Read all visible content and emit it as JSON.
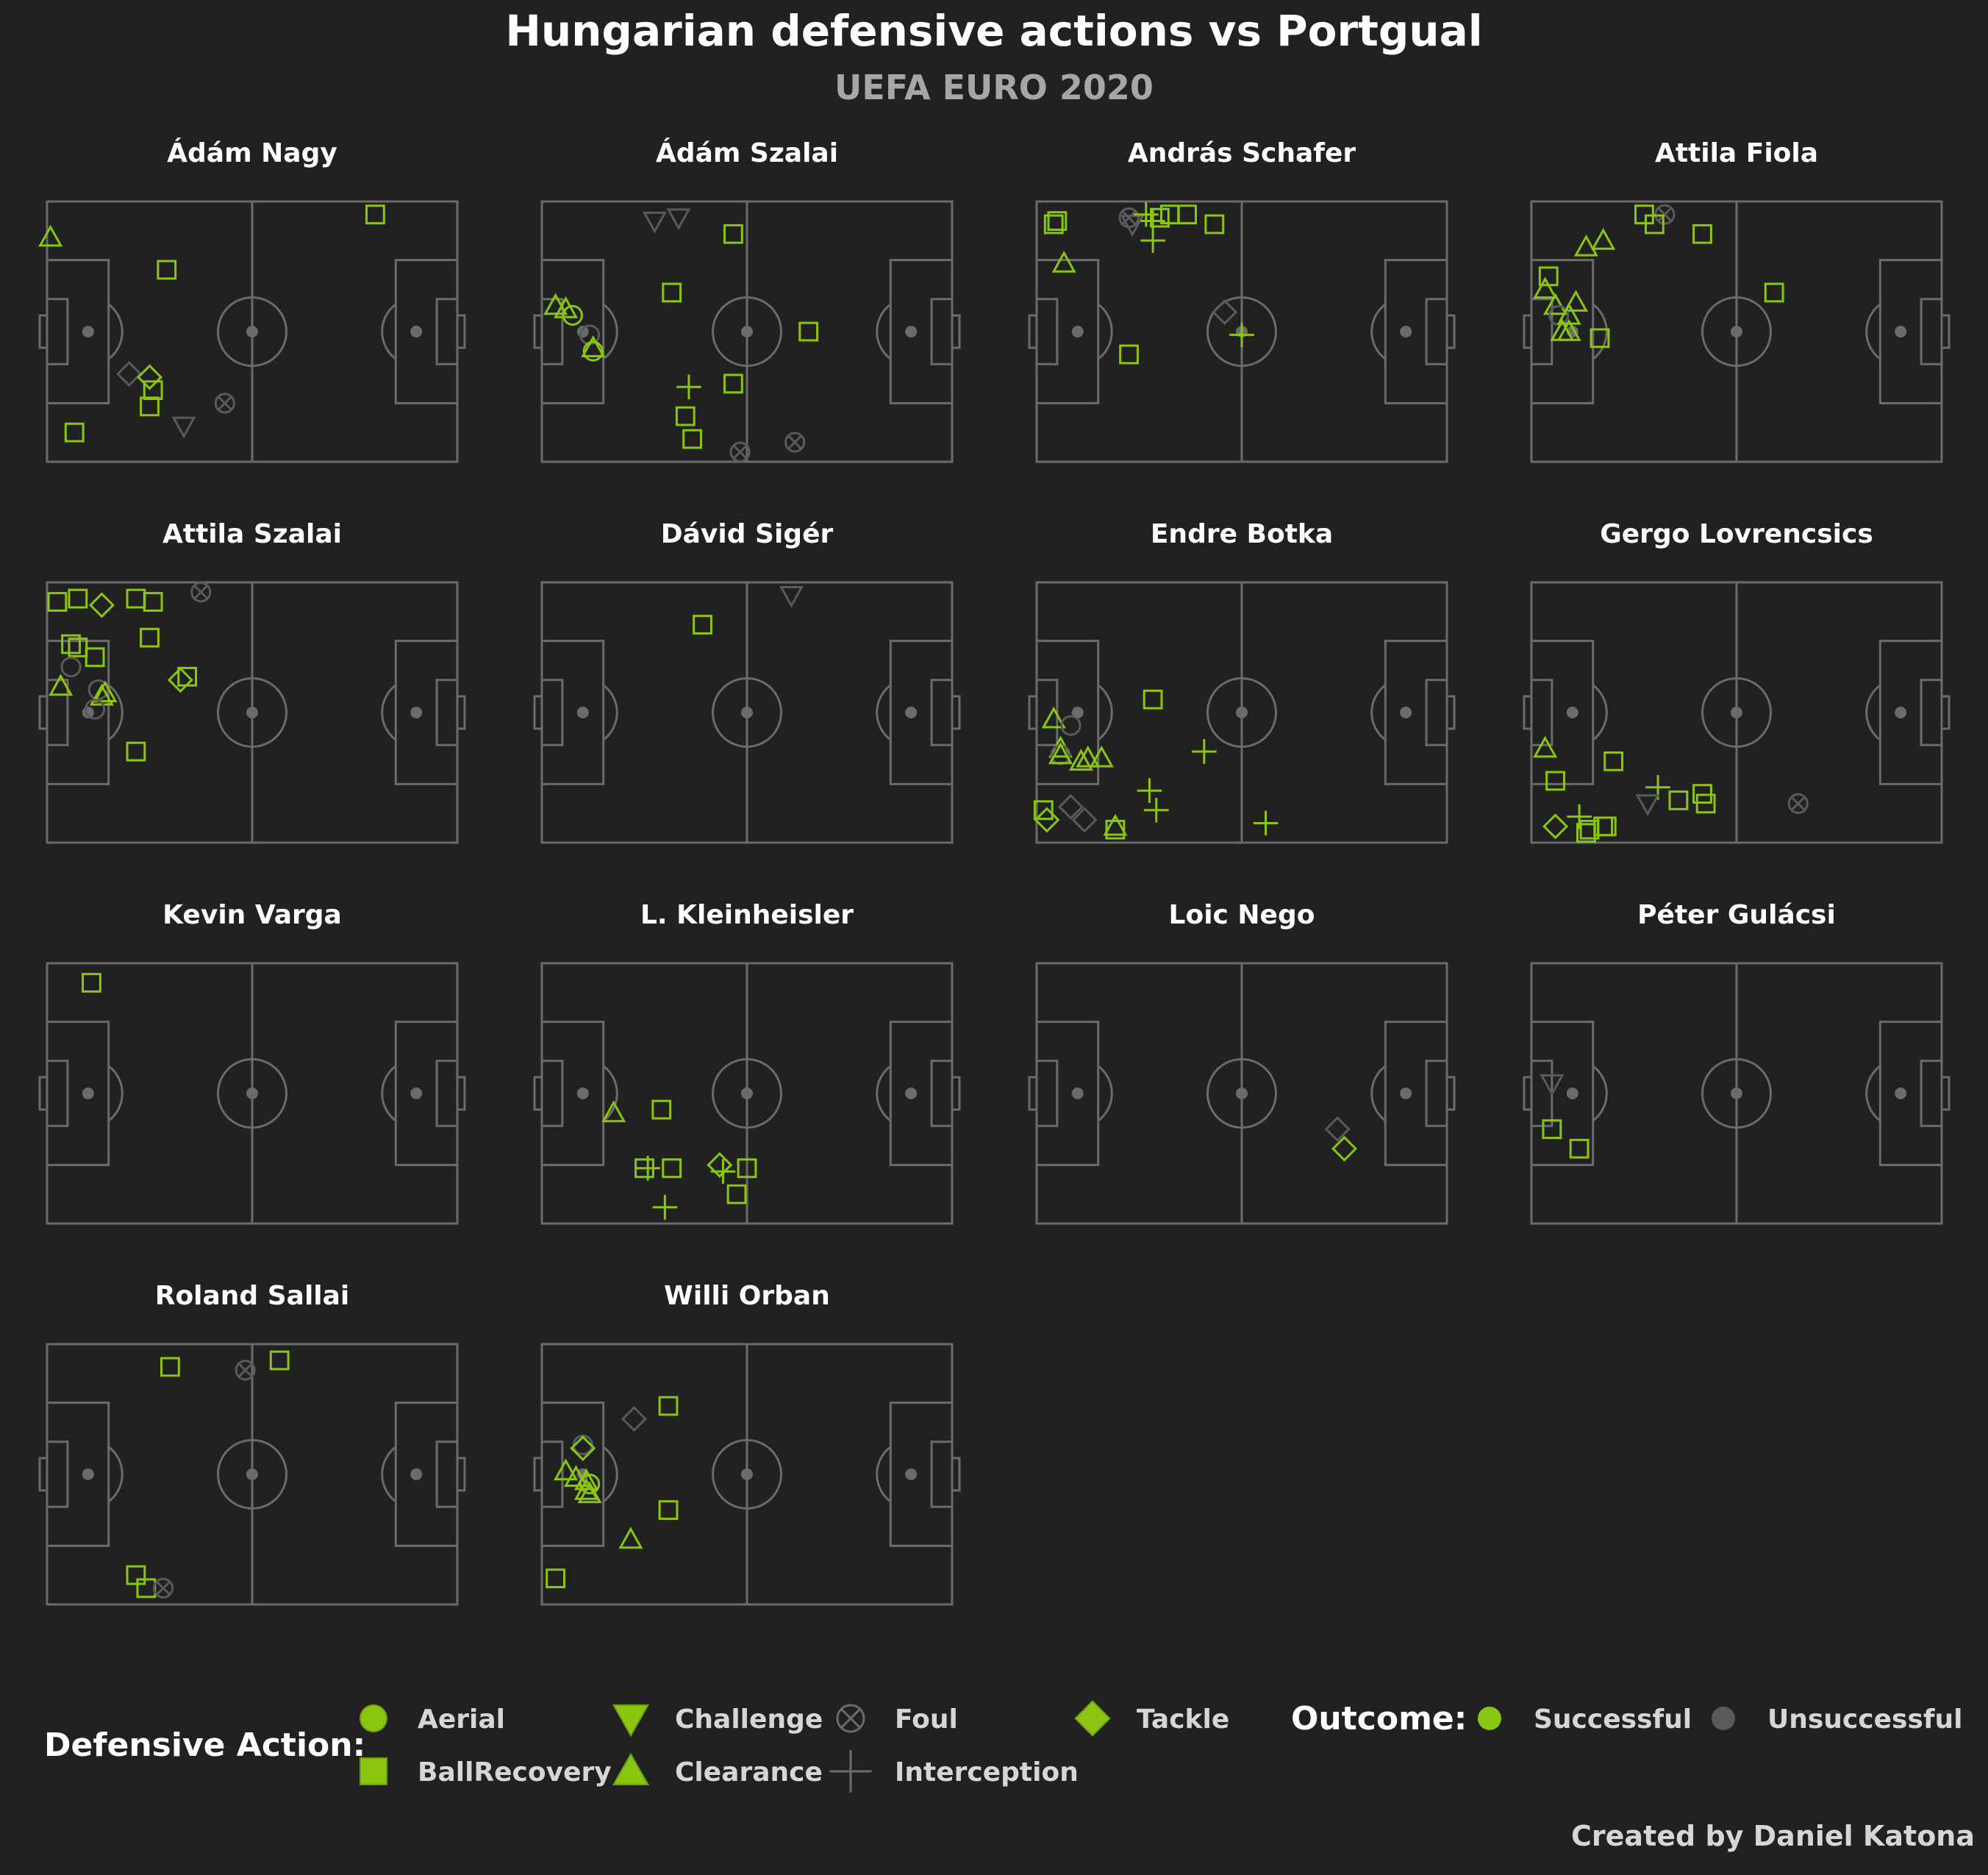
{
  "title": "Hungarian defensive actions vs Portgual",
  "subtitle": "UEFA EURO 2020",
  "credit": "Created by Daniel Katona",
  "colors": {
    "background": "#212121",
    "pitch_line": "#6b6b6b",
    "successful": "#8ac60f",
    "unsuccessful": "#5a5a5a"
  },
  "legend": {
    "actions_title": "Defensive Action:",
    "outcome_title": "Outcome:",
    "actions": [
      {
        "name": "Aerial",
        "marker": "circle"
      },
      {
        "name": "BallRecovery",
        "marker": "square"
      },
      {
        "name": "Challenge",
        "marker": "triangle-down"
      },
      {
        "name": "Clearance",
        "marker": "triangle-up"
      },
      {
        "name": "Foul",
        "marker": "circle-x"
      },
      {
        "name": "Interception",
        "marker": "plus"
      },
      {
        "name": "Tackle",
        "marker": "diamond"
      }
    ],
    "outcomes": [
      {
        "name": "Successful",
        "color": "#8ac60f"
      },
      {
        "name": "Unsuccessful",
        "color": "#5a5a5a"
      }
    ]
  },
  "chart_data": {
    "type": "scatter",
    "pitch": {
      "x": [
        0,
        120
      ],
      "y": [
        0,
        80
      ]
    },
    "players": [
      {
        "name": "Ádám Nagy",
        "events": [
          [
            "Clearance",
            "Successful",
            1,
            69
          ],
          [
            "BallRecovery",
            "Successful",
            96,
            76
          ],
          [
            "BallRecovery",
            "Successful",
            35,
            59
          ],
          [
            "Tackle",
            "Unsuccessful",
            24,
            27
          ],
          [
            "Tackle",
            "Successful",
            30,
            26
          ],
          [
            "BallRecovery",
            "Successful",
            31,
            22
          ],
          [
            "BallRecovery",
            "Successful",
            30,
            17
          ],
          [
            "Challenge",
            "Unsuccessful",
            40,
            11
          ],
          [
            "Foul",
            "Unsuccessful",
            52,
            18
          ],
          [
            "BallRecovery",
            "Successful",
            8,
            9
          ]
        ]
      },
      {
        "name": "Ádám Szalai",
        "events": [
          [
            "Challenge",
            "Unsuccessful",
            33,
            74
          ],
          [
            "Challenge",
            "Unsuccessful",
            40,
            75
          ],
          [
            "BallRecovery",
            "Successful",
            56,
            70
          ],
          [
            "BallRecovery",
            "Successful",
            38,
            52
          ],
          [
            "Clearance",
            "Successful",
            4,
            48
          ],
          [
            "Clearance",
            "Successful",
            7,
            47
          ],
          [
            "Aerial",
            "Successful",
            9,
            45
          ],
          [
            "Aerial",
            "Unsuccessful",
            14,
            39
          ],
          [
            "Aerial",
            "Successful",
            15,
            34
          ],
          [
            "Clearance",
            "Successful",
            15,
            35
          ],
          [
            "BallRecovery",
            "Successful",
            78,
            40
          ],
          [
            "Interception",
            "Successful",
            43,
            23
          ],
          [
            "BallRecovery",
            "Successful",
            56,
            24
          ],
          [
            "BallRecovery",
            "Successful",
            42,
            14
          ],
          [
            "BallRecovery",
            "Successful",
            44,
            7
          ],
          [
            "Foul",
            "Unsuccessful",
            58,
            3
          ],
          [
            "Foul",
            "Unsuccessful",
            74,
            6
          ]
        ]
      },
      {
        "name": "András Schafer",
        "events": [
          [
            "BallRecovery",
            "Successful",
            5,
            73
          ],
          [
            "BallRecovery",
            "Successful",
            6,
            74
          ],
          [
            "Foul",
            "Unsuccessful",
            27,
            75
          ],
          [
            "Challenge",
            "Unsuccessful",
            28,
            73
          ],
          [
            "Interception",
            "Successful",
            32,
            76
          ],
          [
            "Interception",
            "Successful",
            34,
            74
          ],
          [
            "BallRecovery",
            "Successful",
            36,
            75
          ],
          [
            "BallRecovery",
            "Successful",
            39,
            76
          ],
          [
            "BallRecovery",
            "Successful",
            44,
            76
          ],
          [
            "BallRecovery",
            "Successful",
            52,
            73
          ],
          [
            "Interception",
            "Successful",
            34,
            68
          ],
          [
            "Clearance",
            "Successful",
            8,
            61
          ],
          [
            "Tackle",
            "Unsuccessful",
            55,
            46
          ],
          [
            "Interception",
            "Successful",
            60,
            39
          ],
          [
            "BallRecovery",
            "Successful",
            27,
            33
          ]
        ]
      },
      {
        "name": "Attila Fiola",
        "events": [
          [
            "BallRecovery",
            "Successful",
            33,
            76
          ],
          [
            "Foul",
            "Unsuccessful",
            39,
            76
          ],
          [
            "BallRecovery",
            "Successful",
            36,
            73
          ],
          [
            "BallRecovery",
            "Successful",
            50,
            70
          ],
          [
            "Clearance",
            "Successful",
            21,
            68
          ],
          [
            "Clearance",
            "Successful",
            16,
            66
          ],
          [
            "BallRecovery",
            "Successful",
            71,
            52
          ],
          [
            "BallRecovery",
            "Successful",
            5,
            57
          ],
          [
            "Clearance",
            "Successful",
            4,
            53
          ],
          [
            "Clearance",
            "Successful",
            13,
            49
          ],
          [
            "Clearance",
            "Successful",
            7,
            48
          ],
          [
            "Aerial",
            "Unsuccessful",
            8,
            45
          ],
          [
            "Clearance",
            "Successful",
            11,
            45
          ],
          [
            "Clearance",
            "Successful",
            9,
            40
          ],
          [
            "Clearance",
            "Successful",
            11,
            40
          ],
          [
            "BallRecovery",
            "Successful",
            20,
            38
          ]
        ]
      },
      {
        "name": "Attila Szalai",
        "events": [
          [
            "BallRecovery",
            "Successful",
            3,
            74
          ],
          [
            "BallRecovery",
            "Successful",
            9,
            75
          ],
          [
            "Tackle",
            "Successful",
            16,
            73
          ],
          [
            "BallRecovery",
            "Successful",
            26,
            75
          ],
          [
            "BallRecovery",
            "Successful",
            31,
            74
          ],
          [
            "Foul",
            "Unsuccessful",
            45,
            77
          ],
          [
            "BallRecovery",
            "Successful",
            30,
            63
          ],
          [
            "BallRecovery",
            "Successful",
            7,
            61
          ],
          [
            "BallRecovery",
            "Successful",
            9,
            60
          ],
          [
            "BallRecovery",
            "Successful",
            14,
            57
          ],
          [
            "Aerial",
            "Unsuccessful",
            7,
            54
          ],
          [
            "Clearance",
            "Successful",
            4,
            48
          ],
          [
            "Aerial",
            "Unsuccessful",
            15,
            47
          ],
          [
            "Clearance",
            "Successful",
            16,
            45
          ],
          [
            "Clearance",
            "Successful",
            17,
            46
          ],
          [
            "Aerial",
            "Unsuccessful",
            14,
            41
          ],
          [
            "Tackle",
            "Successful",
            39,
            50
          ],
          [
            "BallRecovery",
            "Successful",
            41,
            51
          ],
          [
            "BallRecovery",
            "Successful",
            26,
            28
          ]
        ]
      },
      {
        "name": "Dávid Sigér",
        "events": [
          [
            "Challenge",
            "Unsuccessful",
            73,
            76
          ],
          [
            "BallRecovery",
            "Successful",
            47,
            67
          ]
        ]
      },
      {
        "name": "Endre Botka",
        "events": [
          [
            "BallRecovery",
            "Successful",
            34,
            44
          ],
          [
            "Clearance",
            "Successful",
            5,
            38
          ],
          [
            "Aerial",
            "Unsuccessful",
            10,
            36
          ],
          [
            "Clearance",
            "Successful",
            7,
            29
          ],
          [
            "Aerial",
            "Unsuccessful",
            7,
            27
          ],
          [
            "Clearance",
            "Successful",
            7,
            27
          ],
          [
            "Clearance",
            "Successful",
            13,
            25
          ],
          [
            "Clearance",
            "Successful",
            15,
            26
          ],
          [
            "Clearance",
            "Successful",
            19,
            26
          ],
          [
            "Interception",
            "Successful",
            49,
            28
          ],
          [
            "Interception",
            "Successful",
            33,
            16
          ],
          [
            "Interception",
            "Successful",
            35,
            10
          ],
          [
            "Interception",
            "Successful",
            67,
            6
          ],
          [
            "BallRecovery",
            "Successful",
            2,
            10
          ],
          [
            "Tackle",
            "Successful",
            3,
            7
          ],
          [
            "Tackle",
            "Unsuccessful",
            10,
            11
          ],
          [
            "Tackle",
            "Unsuccessful",
            14,
            7
          ],
          [
            "BallRecovery",
            "Successful",
            23,
            4
          ],
          [
            "Clearance",
            "Successful",
            23,
            5
          ]
        ]
      },
      {
        "name": "Gergo Lovrencsics",
        "events": [
          [
            "Clearance",
            "Successful",
            4,
            29
          ],
          [
            "BallRecovery",
            "Successful",
            24,
            25
          ],
          [
            "BallRecovery",
            "Successful",
            7,
            19
          ],
          [
            "Interception",
            "Successful",
            37,
            17
          ],
          [
            "Challenge",
            "Unsuccessful",
            34,
            12
          ],
          [
            "BallRecovery",
            "Successful",
            43,
            13
          ],
          [
            "BallRecovery",
            "Successful",
            50,
            15
          ],
          [
            "BallRecovery",
            "Successful",
            51,
            12
          ],
          [
            "Foul",
            "Unsuccessful",
            78,
            12
          ],
          [
            "Interception",
            "Successful",
            14,
            8
          ],
          [
            "Tackle",
            "Successful",
            7,
            5
          ],
          [
            "BallRecovery",
            "Successful",
            16,
            3
          ],
          [
            "BallRecovery",
            "Successful",
            17,
            4
          ],
          [
            "BallRecovery",
            "Successful",
            21,
            5
          ],
          [
            "BallRecovery",
            "Successful",
            22,
            5
          ]
        ]
      },
      {
        "name": "Kevin Varga",
        "events": [
          [
            "BallRecovery",
            "Successful",
            13,
            74
          ]
        ]
      },
      {
        "name": "L. Kleinheisler",
        "events": [
          [
            "Clearance",
            "Successful",
            21,
            34
          ],
          [
            "BallRecovery",
            "Successful",
            35,
            35
          ],
          [
            "Interception",
            "Successful",
            31,
            17
          ],
          [
            "BallRecovery",
            "Successful",
            30,
            17
          ],
          [
            "BallRecovery",
            "Successful",
            38,
            17
          ],
          [
            "Tackle",
            "Successful",
            52,
            18
          ],
          [
            "Interception",
            "Successful",
            53,
            16
          ],
          [
            "BallRecovery",
            "Successful",
            60,
            17
          ],
          [
            "BallRecovery",
            "Successful",
            57,
            9
          ],
          [
            "Interception",
            "Successful",
            36,
            5
          ]
        ]
      },
      {
        "name": "Loic Nego",
        "events": [
          [
            "Tackle",
            "Unsuccessful",
            88,
            29
          ],
          [
            "Tackle",
            "Successful",
            90,
            23
          ]
        ]
      },
      {
        "name": "Péter Gulácsi",
        "events": [
          [
            "Challenge",
            "Unsuccessful",
            6,
            43
          ],
          [
            "BallRecovery",
            "Successful",
            6,
            29
          ],
          [
            "BallRecovery",
            "Successful",
            14,
            23
          ]
        ]
      },
      {
        "name": "Roland Sallai",
        "events": [
          [
            "BallRecovery",
            "Successful",
            36,
            73
          ],
          [
            "BallRecovery",
            "Successful",
            68,
            75
          ],
          [
            "Foul",
            "Unsuccessful",
            58,
            72
          ],
          [
            "BallRecovery",
            "Successful",
            26,
            9
          ],
          [
            "BallRecovery",
            "Successful",
            29,
            5
          ],
          [
            "Foul",
            "Unsuccessful",
            34,
            5
          ]
        ]
      },
      {
        "name": "Willi Orban",
        "events": [
          [
            "BallRecovery",
            "Successful",
            37,
            61
          ],
          [
            "Tackle",
            "Unsuccessful",
            27,
            57
          ],
          [
            "Aerial",
            "Unsuccessful",
            12,
            49
          ],
          [
            "Tackle",
            "Successful",
            12,
            48
          ],
          [
            "Clearance",
            "Successful",
            7,
            41
          ],
          [
            "Clearance",
            "Successful",
            10,
            39
          ],
          [
            "Clearance",
            "Successful",
            13,
            38
          ],
          [
            "Aerial",
            "Successful",
            14,
            37
          ],
          [
            "Clearance",
            "Successful",
            13,
            35
          ],
          [
            "Clearance",
            "Successful",
            14,
            34
          ],
          [
            "Clearance",
            "Successful",
            26,
            20
          ],
          [
            "BallRecovery",
            "Successful",
            37,
            29
          ],
          [
            "BallRecovery",
            "Successful",
            4,
            8
          ]
        ]
      }
    ]
  }
}
